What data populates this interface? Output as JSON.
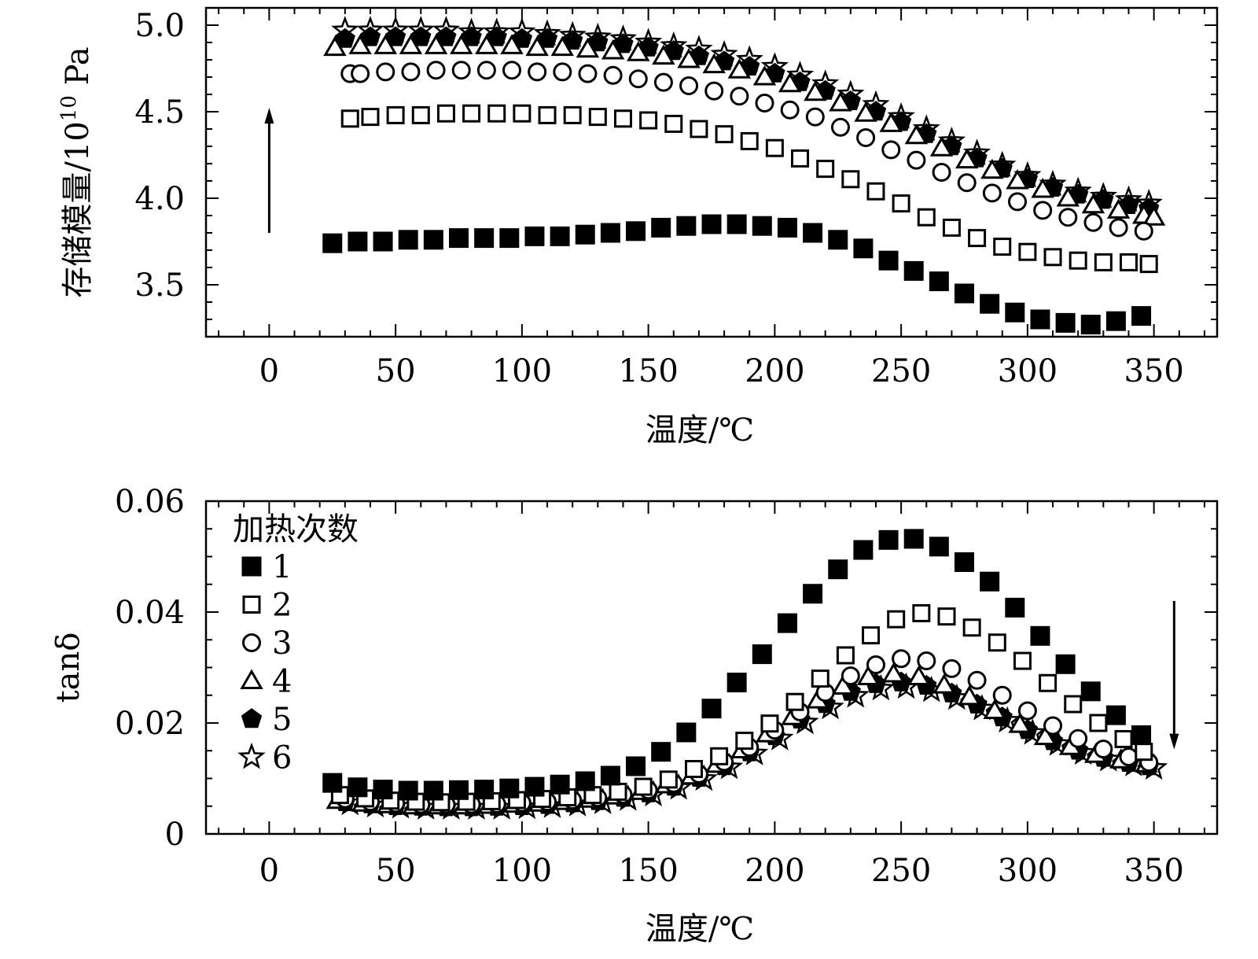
{
  "chart_data": [
    {
      "type": "scatter",
      "title": "",
      "xlabel": "温度/℃",
      "ylabel": "存储模量/10",
      "ylabel_exponent": "10",
      "ylabel_unit": " Pa",
      "xlim": [
        -25,
        375
      ],
      "ylim": [
        3.2,
        5.1
      ],
      "x_ticks": [
        0,
        50,
        100,
        150,
        200,
        250,
        300,
        350
      ],
      "x_tick_labels": [
        "0",
        "50",
        "100",
        "150",
        "200",
        "250",
        "300",
        "350"
      ],
      "y_ticks": [
        3.5,
        4.0,
        4.5,
        5.0
      ],
      "y_tick_labels": [
        "3.5",
        "4.0",
        "4.5",
        "5.0"
      ],
      "grid": false,
      "legend": "none",
      "annotation": "upward arrow (increasing heating count)",
      "series": [
        {
          "name": "1",
          "marker": "square-filled",
          "x": [
            25,
            35,
            45,
            55,
            65,
            75,
            85,
            95,
            105,
            115,
            125,
            135,
            145,
            155,
            165,
            175,
            185,
            195,
            205,
            215,
            225,
            235,
            245,
            255,
            265,
            275,
            285,
            295,
            305,
            315,
            325,
            335,
            345
          ],
          "y": [
            3.74,
            3.75,
            3.75,
            3.76,
            3.76,
            3.77,
            3.77,
            3.77,
            3.78,
            3.78,
            3.79,
            3.8,
            3.81,
            3.83,
            3.84,
            3.85,
            3.85,
            3.84,
            3.83,
            3.8,
            3.76,
            3.71,
            3.64,
            3.58,
            3.52,
            3.45,
            3.39,
            3.34,
            3.3,
            3.28,
            3.27,
            3.29,
            3.32
          ]
        },
        {
          "name": "2",
          "marker": "square-open",
          "x": [
            32,
            40,
            50,
            60,
            70,
            80,
            90,
            100,
            110,
            120,
            130,
            140,
            150,
            160,
            170,
            180,
            190,
            200,
            210,
            220,
            230,
            240,
            250,
            260,
            270,
            280,
            290,
            300,
            310,
            320,
            330,
            340,
            348
          ],
          "y": [
            4.46,
            4.47,
            4.48,
            4.48,
            4.49,
            4.49,
            4.49,
            4.49,
            4.48,
            4.48,
            4.47,
            4.46,
            4.45,
            4.43,
            4.4,
            4.37,
            4.33,
            4.29,
            4.23,
            4.17,
            4.11,
            4.04,
            3.97,
            3.89,
            3.83,
            3.77,
            3.72,
            3.69,
            3.66,
            3.64,
            3.63,
            3.63,
            3.62
          ]
        },
        {
          "name": "3",
          "marker": "circle-open",
          "x": [
            32,
            36,
            46,
            56,
            66,
            76,
            86,
            96,
            106,
            116,
            126,
            136,
            146,
            156,
            166,
            176,
            186,
            196,
            206,
            216,
            226,
            236,
            246,
            256,
            266,
            276,
            286,
            296,
            306,
            316,
            326,
            336,
            346
          ],
          "y": [
            4.72,
            4.72,
            4.73,
            4.73,
            4.74,
            4.74,
            4.74,
            4.74,
            4.73,
            4.73,
            4.72,
            4.71,
            4.69,
            4.67,
            4.65,
            4.62,
            4.59,
            4.55,
            4.51,
            4.47,
            4.41,
            4.35,
            4.28,
            4.22,
            4.15,
            4.09,
            4.03,
            3.98,
            3.93,
            3.89,
            3.86,
            3.83,
            3.81
          ]
        },
        {
          "name": "4",
          "marker": "triangle-open",
          "x": [
            26,
            36,
            46,
            56,
            66,
            76,
            86,
            96,
            106,
            116,
            126,
            136,
            146,
            156,
            166,
            176,
            186,
            196,
            206,
            216,
            226,
            236,
            246,
            256,
            266,
            276,
            286,
            296,
            306,
            316,
            326,
            336,
            346,
            350
          ],
          "y": [
            4.87,
            4.88,
            4.88,
            4.88,
            4.88,
            4.88,
            4.88,
            4.88,
            4.87,
            4.87,
            4.86,
            4.85,
            4.84,
            4.82,
            4.8,
            4.77,
            4.74,
            4.7,
            4.66,
            4.61,
            4.55,
            4.49,
            4.43,
            4.36,
            4.29,
            4.22,
            4.16,
            4.1,
            4.05,
            4.0,
            3.96,
            3.93,
            3.9,
            3.89
          ]
        },
        {
          "name": "5",
          "marker": "pentagon-filled",
          "x": [
            30,
            40,
            50,
            60,
            70,
            80,
            90,
            100,
            110,
            120,
            130,
            140,
            150,
            160,
            170,
            180,
            190,
            200,
            210,
            220,
            230,
            240,
            250,
            260,
            270,
            280,
            290,
            300,
            310,
            320,
            330,
            340,
            348
          ],
          "y": [
            4.92,
            4.93,
            4.93,
            4.93,
            4.93,
            4.93,
            4.93,
            4.92,
            4.92,
            4.91,
            4.9,
            4.89,
            4.87,
            4.85,
            4.82,
            4.79,
            4.76,
            4.72,
            4.67,
            4.62,
            4.56,
            4.5,
            4.44,
            4.37,
            4.3,
            4.23,
            4.17,
            4.11,
            4.06,
            4.02,
            3.99,
            3.96,
            3.94
          ]
        },
        {
          "name": "6",
          "marker": "star-open",
          "x": [
            30,
            40,
            50,
            60,
            70,
            80,
            90,
            100,
            110,
            120,
            130,
            140,
            150,
            160,
            170,
            180,
            190,
            200,
            210,
            220,
            230,
            240,
            250,
            260,
            270,
            280,
            290,
            300,
            310,
            320,
            330,
            340,
            348
          ],
          "y": [
            4.97,
            4.97,
            4.97,
            4.97,
            4.97,
            4.96,
            4.96,
            4.96,
            4.95,
            4.94,
            4.93,
            4.92,
            4.9,
            4.88,
            4.86,
            4.83,
            4.8,
            4.76,
            4.71,
            4.66,
            4.6,
            4.54,
            4.47,
            4.4,
            4.33,
            4.26,
            4.19,
            4.13,
            4.08,
            4.04,
            4.01,
            3.99,
            3.97
          ]
        }
      ]
    },
    {
      "type": "scatter",
      "title": "",
      "xlabel": "温度/℃",
      "ylabel": "tanδ",
      "xlim": [
        -25,
        375
      ],
      "ylim": [
        0,
        0.06
      ],
      "x_ticks": [
        0,
        50,
        100,
        150,
        200,
        250,
        300,
        350
      ],
      "x_tick_labels": [
        "0",
        "50",
        "100",
        "150",
        "200",
        "250",
        "300",
        "350"
      ],
      "y_ticks": [
        0,
        0.02,
        0.04,
        0.06
      ],
      "y_tick_labels": [
        "0",
        "0.02",
        "0.04",
        "0.06"
      ],
      "grid": false,
      "legend": "top-left",
      "legend_title": "加热次数",
      "annotation": "downward arrow (increasing heating count)",
      "series": [
        {
          "name": "1",
          "marker": "square-filled",
          "x": [
            25,
            35,
            45,
            55,
            65,
            75,
            85,
            95,
            105,
            115,
            125,
            135,
            145,
            155,
            165,
            175,
            185,
            195,
            205,
            215,
            225,
            235,
            245,
            255,
            265,
            275,
            285,
            295,
            305,
            315,
            325,
            335,
            345
          ],
          "y": [
            0.0092,
            0.0084,
            0.008,
            0.0078,
            0.0078,
            0.0079,
            0.008,
            0.0082,
            0.0085,
            0.0089,
            0.0095,
            0.0105,
            0.0122,
            0.0148,
            0.0183,
            0.0226,
            0.0273,
            0.0324,
            0.038,
            0.0433,
            0.0477,
            0.0512,
            0.053,
            0.0532,
            0.0518,
            0.049,
            0.0455,
            0.0408,
            0.0357,
            0.0306,
            0.0257,
            0.0214,
            0.0178
          ]
        },
        {
          "name": "2",
          "marker": "square-open",
          "x": [
            28,
            38,
            48,
            58,
            68,
            78,
            88,
            98,
            108,
            118,
            128,
            138,
            148,
            158,
            168,
            178,
            188,
            198,
            208,
            218,
            228,
            238,
            248,
            258,
            268,
            278,
            288,
            298,
            308,
            318,
            328,
            338,
            346
          ],
          "y": [
            0.007,
            0.0064,
            0.006,
            0.0058,
            0.0057,
            0.0058,
            0.0059,
            0.0061,
            0.0063,
            0.0066,
            0.007,
            0.0076,
            0.0085,
            0.0098,
            0.0117,
            0.014,
            0.0168,
            0.0199,
            0.0238,
            0.028,
            0.0322,
            0.0358,
            0.0387,
            0.0398,
            0.0392,
            0.0372,
            0.0345,
            0.0312,
            0.0272,
            0.0234,
            0.02,
            0.0171,
            0.0148
          ]
        },
        {
          "name": "3",
          "marker": "circle-open",
          "x": [
            30,
            40,
            50,
            60,
            70,
            80,
            90,
            100,
            110,
            120,
            130,
            140,
            150,
            160,
            170,
            180,
            190,
            200,
            210,
            220,
            230,
            240,
            250,
            260,
            270,
            280,
            290,
            300,
            310,
            320,
            330,
            340,
            348
          ],
          "y": [
            0.0063,
            0.0058,
            0.0055,
            0.0053,
            0.0053,
            0.0053,
            0.0054,
            0.0056,
            0.0058,
            0.0061,
            0.0065,
            0.0071,
            0.0079,
            0.0091,
            0.0108,
            0.013,
            0.0156,
            0.0187,
            0.022,
            0.0255,
            0.0285,
            0.0305,
            0.0316,
            0.0312,
            0.0298,
            0.0277,
            0.025,
            0.0222,
            0.0195,
            0.0172,
            0.0153,
            0.0139,
            0.0129
          ]
        },
        {
          "name": "4",
          "marker": "triangle-open",
          "x": [
            27,
            37,
            47,
            57,
            67,
            77,
            87,
            97,
            107,
            117,
            127,
            137,
            147,
            157,
            167,
            177,
            187,
            197,
            207,
            217,
            227,
            237,
            247,
            257,
            267,
            277,
            287,
            297,
            307,
            317,
            327,
            337,
            347
          ],
          "y": [
            0.006,
            0.0055,
            0.0052,
            0.005,
            0.005,
            0.005,
            0.0051,
            0.0053,
            0.0055,
            0.0058,
            0.0062,
            0.0068,
            0.0076,
            0.0088,
            0.0104,
            0.0125,
            0.0151,
            0.018,
            0.0211,
            0.0241,
            0.0266,
            0.0283,
            0.0288,
            0.0283,
            0.0268,
            0.0247,
            0.0222,
            0.0197,
            0.0175,
            0.0157,
            0.0143,
            0.0133,
            0.0126
          ]
        },
        {
          "name": "5",
          "marker": "pentagon-filled",
          "x": [
            30,
            40,
            50,
            60,
            70,
            80,
            90,
            100,
            110,
            120,
            130,
            140,
            150,
            160,
            170,
            180,
            190,
            200,
            210,
            220,
            230,
            240,
            250,
            260,
            270,
            280,
            290,
            300,
            310,
            320,
            330,
            340,
            348
          ],
          "y": [
            0.0057,
            0.0053,
            0.005,
            0.0049,
            0.0048,
            0.0048,
            0.0049,
            0.005,
            0.0052,
            0.0055,
            0.0059,
            0.0065,
            0.0073,
            0.0085,
            0.0101,
            0.0122,
            0.0147,
            0.0176,
            0.0206,
            0.0234,
            0.0256,
            0.027,
            0.0273,
            0.0267,
            0.0253,
            0.0233,
            0.021,
            0.0187,
            0.0167,
            0.015,
            0.0137,
            0.0128,
            0.0122
          ]
        },
        {
          "name": "6",
          "marker": "star-open",
          "x": [
            32,
            42,
            52,
            62,
            72,
            82,
            92,
            102,
            112,
            122,
            132,
            142,
            152,
            162,
            172,
            182,
            192,
            202,
            212,
            222,
            232,
            242,
            252,
            262,
            272,
            282,
            292,
            302,
            312,
            322,
            332,
            342,
            350
          ],
          "y": [
            0.0055,
            0.0051,
            0.0049,
            0.0047,
            0.0047,
            0.0047,
            0.0047,
            0.0048,
            0.005,
            0.0053,
            0.0057,
            0.0063,
            0.0071,
            0.0083,
            0.0099,
            0.012,
            0.0145,
            0.0172,
            0.0201,
            0.0228,
            0.0249,
            0.0262,
            0.0265,
            0.0259,
            0.0245,
            0.0226,
            0.0204,
            0.0182,
            0.0162,
            0.0146,
            0.0134,
            0.0125,
            0.0119
          ]
        }
      ]
    }
  ]
}
